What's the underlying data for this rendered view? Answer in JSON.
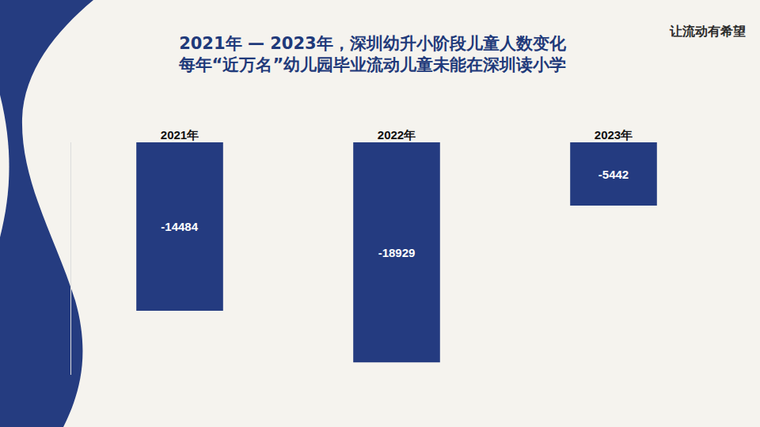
{
  "chart_data": {
    "type": "bar",
    "title": "2021年 — 2023年，深圳幼升小阶段儿童人数变化",
    "subtitle": "每年“近万名”幼儿园毕业流动儿童未能在深圳读小学",
    "annotations": [
      "让流动有希望"
    ],
    "categories": [
      "2021年",
      "2022年",
      "2023年"
    ],
    "values": [
      -14484,
      -18929,
      -5442
    ],
    "color": "#243b80",
    "ylim": [
      -20000,
      0
    ],
    "yticks": [
      0
    ],
    "grid": true,
    "data_labels": true,
    "tick_labels": "x"
  }
}
